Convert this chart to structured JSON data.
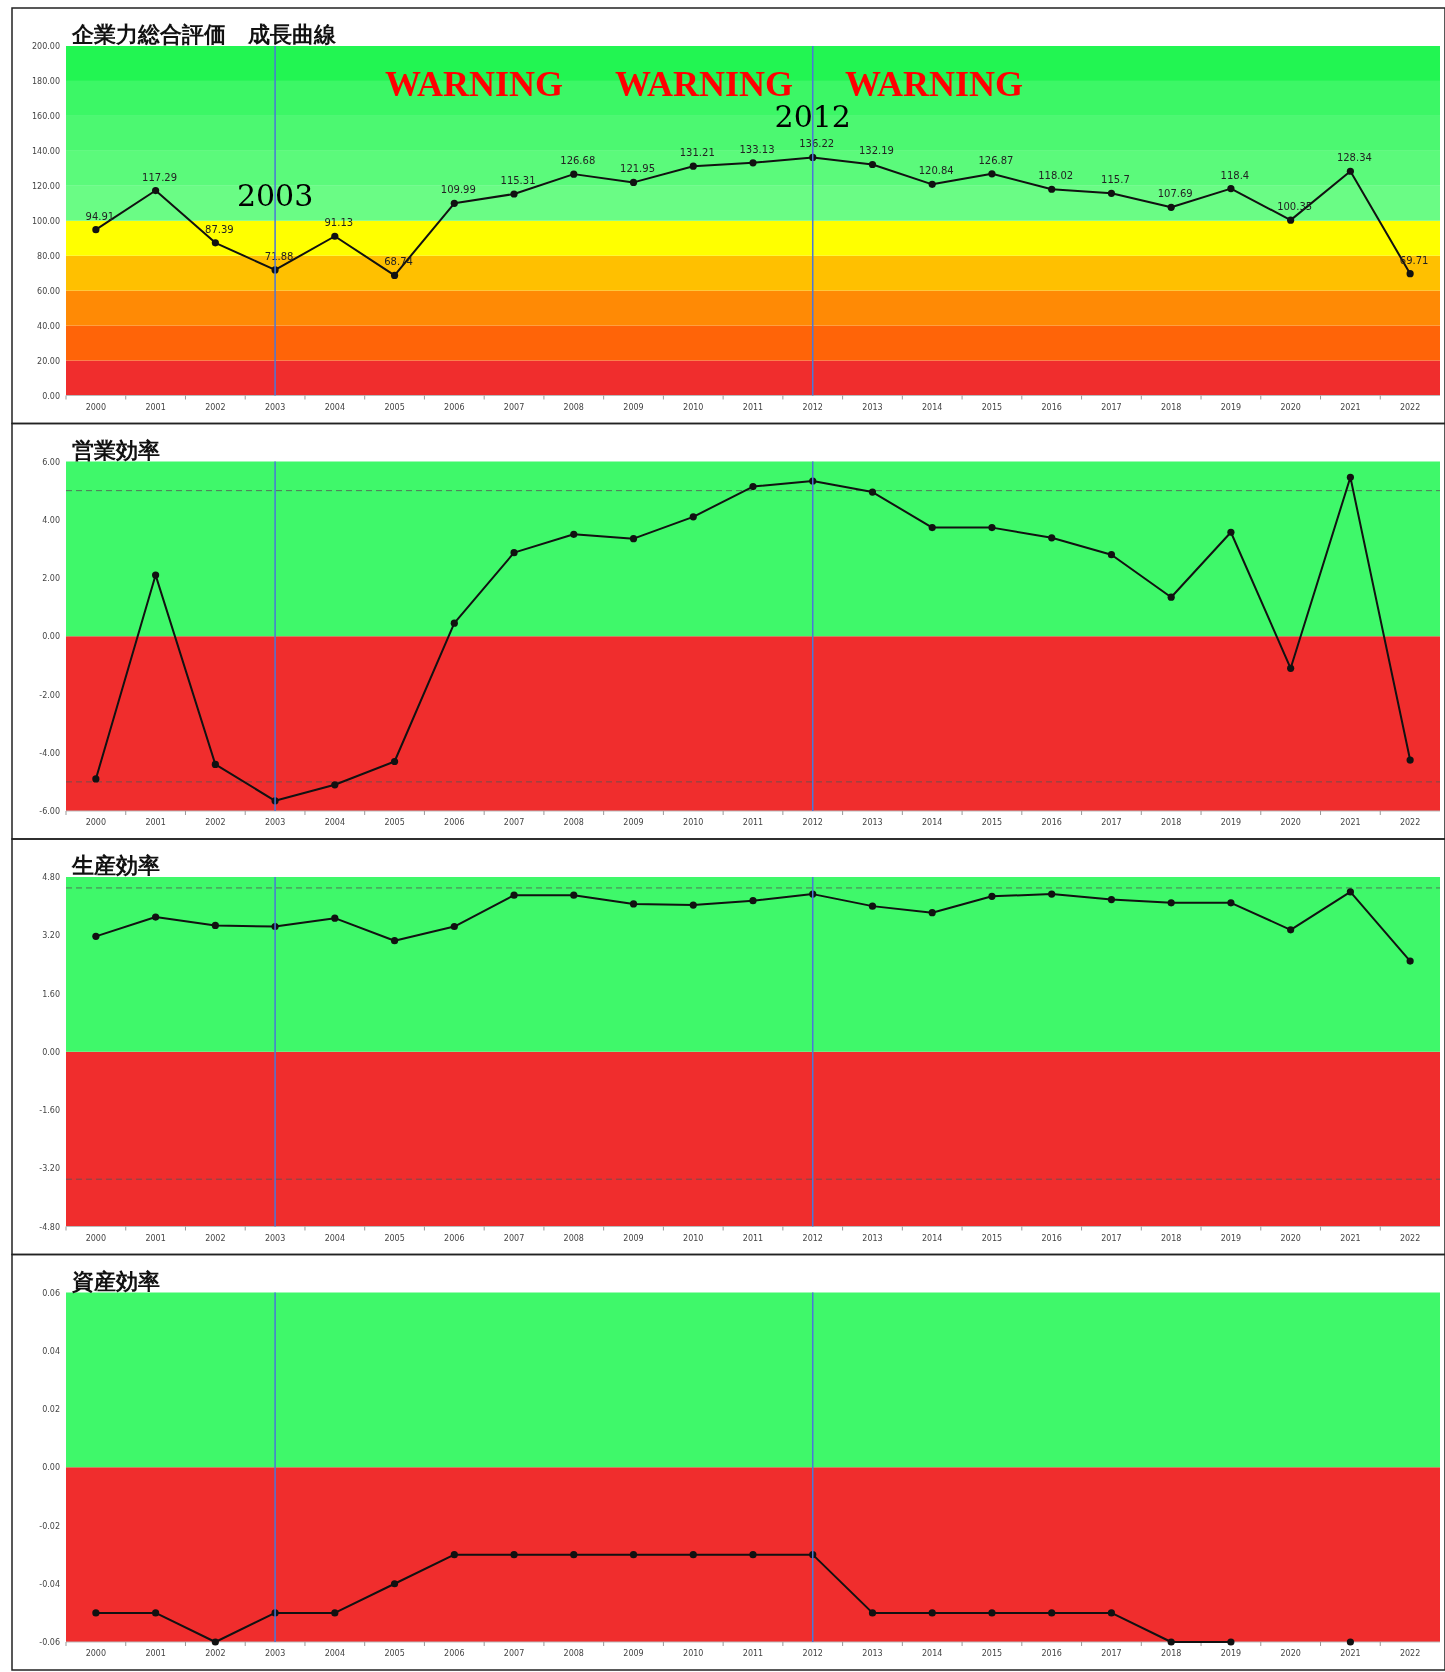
{
  "chart_data": [
    {
      "type": "line",
      "title": "企業力総合評価　成長曲線",
      "categories": [
        "2000",
        "2001",
        "2002",
        "2003",
        "2004",
        "2005",
        "2006",
        "2007",
        "2008",
        "2009",
        "2010",
        "2011",
        "2012",
        "2013",
        "2014",
        "2015",
        "2016",
        "2017",
        "2018",
        "2019",
        "2020",
        "2021",
        "2022"
      ],
      "values": [
        94.91,
        117.29,
        87.39,
        71.88,
        91.13,
        68.74,
        109.99,
        115.31,
        126.68,
        121.95,
        131.21,
        133.13,
        136.22,
        132.19,
        120.84,
        126.87,
        118.02,
        115.7,
        107.69,
        118.4,
        100.35,
        128.34,
        69.71
      ],
      "color": "#111111",
      "marker": "circle",
      "data_labels": true,
      "ylim": [
        0,
        200
      ],
      "yticks": [
        {
          "value": 0,
          "label": "0.00"
        },
        {
          "value": 20,
          "label": "20.00"
        },
        {
          "value": 40,
          "label": "40.00"
        },
        {
          "value": 60,
          "label": "60.00"
        },
        {
          "value": 80,
          "label": "80.00"
        },
        {
          "value": 100,
          "label": "100.00"
        },
        {
          "value": 120,
          "label": "120.00"
        },
        {
          "value": 140,
          "label": "140.00"
        },
        {
          "value": 160,
          "label": "160.00"
        },
        {
          "value": 180,
          "label": "180.00"
        },
        {
          "value": 200,
          "label": "200.00"
        }
      ],
      "bands": [
        {
          "axis": "y",
          "from": 0,
          "to": 20,
          "color": "#f02d2d"
        },
        {
          "axis": "y",
          "from": 20,
          "to": 40,
          "color": "#ff6408"
        },
        {
          "axis": "y",
          "from": 40,
          "to": 60,
          "color": "#ff8a05"
        },
        {
          "axis": "y",
          "from": 60,
          "to": 80,
          "color": "#ffc000"
        },
        {
          "axis": "y",
          "from": 80,
          "to": 100,
          "color": "#ffff00"
        },
        {
          "axis": "y",
          "from": 100,
          "to": 120,
          "color": "#6afc85"
        },
        {
          "axis": "y",
          "from": 120,
          "to": 140,
          "color": "#5bfa7b"
        },
        {
          "axis": "y",
          "from": 140,
          "to": 160,
          "color": "#4cf871"
        },
        {
          "axis": "y",
          "from": 160,
          "to": 180,
          "color": "#3cf766"
        },
        {
          "axis": "y",
          "from": 180,
          "to": 200,
          "color": "#22f552"
        }
      ],
      "ref_lines": [
        {
          "axis": "x",
          "value": "2003",
          "label": "2003",
          "color": "#4a78d8"
        },
        {
          "axis": "x",
          "value": "2012",
          "label": "2012",
          "color": "#4a78d8"
        }
      ],
      "annotations": [
        "WARNING",
        "WARNING",
        "WARNING"
      ]
    },
    {
      "type": "line",
      "title": "営業効率",
      "categories": [
        "2000",
        "2001",
        "2002",
        "2003",
        "2004",
        "2005",
        "2006",
        "2007",
        "2008",
        "2009",
        "2010",
        "2011",
        "2012",
        "2013",
        "2014",
        "2015",
        "2016",
        "2017",
        "2018",
        "2019",
        "2020",
        "2021",
        "2022"
      ],
      "values": [
        -4.9,
        2.1,
        -4.4,
        -5.65,
        -5.1,
        -4.3,
        0.45,
        2.87,
        3.5,
        3.35,
        4.1,
        5.14,
        5.33,
        4.95,
        3.73,
        3.73,
        3.38,
        2.8,
        1.34,
        3.57,
        -1.1,
        5.46,
        -4.25
      ],
      "color": "#111111",
      "marker": "circle",
      "ylim": [
        -6,
        6
      ],
      "yticks": [
        {
          "value": -6,
          "label": "-6.00"
        },
        {
          "value": -4,
          "label": "-4.00"
        },
        {
          "value": -2,
          "label": "-2.00"
        },
        {
          "value": 0,
          "label": "0.00"
        },
        {
          "value": 2,
          "label": "2.00"
        },
        {
          "value": 4,
          "label": "4.00"
        },
        {
          "value": 6,
          "label": "6.00"
        }
      ],
      "bands": [
        {
          "axis": "y",
          "from": -6,
          "to": 0,
          "color": "#f02d2d"
        },
        {
          "axis": "y",
          "from": 0,
          "to": 6,
          "color": "#3ff86a"
        }
      ],
      "ref_lines": [
        {
          "axis": "y",
          "value": 5,
          "color": "#555555",
          "line_style": "dashed"
        },
        {
          "axis": "y",
          "value": -5,
          "color": "#555555",
          "line_style": "dashed"
        },
        {
          "axis": "x",
          "value": "2003",
          "color": "#4a78d8"
        },
        {
          "axis": "x",
          "value": "2012",
          "color": "#4a78d8"
        }
      ]
    },
    {
      "type": "line",
      "title": "生産効率",
      "categories": [
        "2000",
        "2001",
        "2002",
        "2003",
        "2004",
        "2005",
        "2006",
        "2007",
        "2008",
        "2009",
        "2010",
        "2011",
        "2012",
        "2013",
        "2014",
        "2015",
        "2016",
        "2017",
        "2018",
        "2019",
        "2020",
        "2021",
        "2022"
      ],
      "values": [
        3.17,
        3.7,
        3.47,
        3.44,
        3.67,
        3.05,
        3.44,
        4.3,
        4.3,
        4.06,
        4.03,
        4.15,
        4.33,
        4.0,
        3.82,
        4.27,
        4.33,
        4.18,
        4.09,
        4.09,
        3.35,
        4.39,
        2.49
      ],
      "color": "#111111",
      "marker": "circle",
      "ylim": [
        -4.8,
        4.8
      ],
      "yticks": [
        {
          "value": -4.8,
          "label": "-4.80"
        },
        {
          "value": -3.2,
          "label": "-3.20"
        },
        {
          "value": -1.6,
          "label": "-1.60"
        },
        {
          "value": 0,
          "label": "0.00"
        },
        {
          "value": 1.6,
          "label": "1.60"
        },
        {
          "value": 3.2,
          "label": "3.20"
        },
        {
          "value": 4.8,
          "label": "4.80"
        }
      ],
      "bands": [
        {
          "axis": "y",
          "from": -4.8,
          "to": 0,
          "color": "#f02d2d"
        },
        {
          "axis": "y",
          "from": 0,
          "to": 4.8,
          "color": "#3ff86a"
        }
      ],
      "ref_lines": [
        {
          "axis": "y",
          "value": 4.5,
          "color": "#555555",
          "line_style": "dashed"
        },
        {
          "axis": "y",
          "value": -3.5,
          "color": "#555555",
          "line_style": "dashed"
        },
        {
          "axis": "x",
          "value": "2003",
          "color": "#4a78d8"
        },
        {
          "axis": "x",
          "value": "2012",
          "color": "#4a78d8"
        }
      ]
    },
    {
      "type": "line",
      "title": "資産効率",
      "categories": [
        "2000",
        "2001",
        "2002",
        "2003",
        "2004",
        "2005",
        "2006",
        "2007",
        "2008",
        "2009",
        "2010",
        "2011",
        "2012",
        "2013",
        "2014",
        "2015",
        "2016",
        "2017",
        "2018",
        "2019",
        "2020",
        "2021",
        "2022"
      ],
      "values": [
        -0.05,
        -0.05,
        -0.06,
        -0.05,
        -0.05,
        -0.04,
        -0.03,
        -0.03,
        -0.03,
        -0.03,
        -0.03,
        -0.03,
        -0.03,
        -0.05,
        -0.05,
        -0.05,
        -0.05,
        -0.05,
        -0.06,
        -0.06,
        null,
        -0.06,
        null
      ],
      "color": "#111111",
      "marker": "circle",
      "ylim": [
        -0.06,
        0.06
      ],
      "yticks": [
        {
          "value": -0.06,
          "label": "-0.06"
        },
        {
          "value": -0.04,
          "label": "-0.04"
        },
        {
          "value": -0.02,
          "label": "-0.02"
        },
        {
          "value": 0,
          "label": "0.00"
        },
        {
          "value": 0.02,
          "label": "0.02"
        },
        {
          "value": 0.04,
          "label": "0.04"
        },
        {
          "value": 0.06,
          "label": "0.06"
        }
      ],
      "bands": [
        {
          "axis": "y",
          "from": -0.06,
          "to": 0,
          "color": "#f02d2d"
        },
        {
          "axis": "y",
          "from": 0,
          "to": 0.06,
          "color": "#3ff86a"
        }
      ],
      "ref_lines": [
        {
          "axis": "x",
          "value": "2003",
          "color": "#4a78d8"
        },
        {
          "axis": "x",
          "value": "2012",
          "color": "#4a78d8"
        }
      ]
    }
  ]
}
